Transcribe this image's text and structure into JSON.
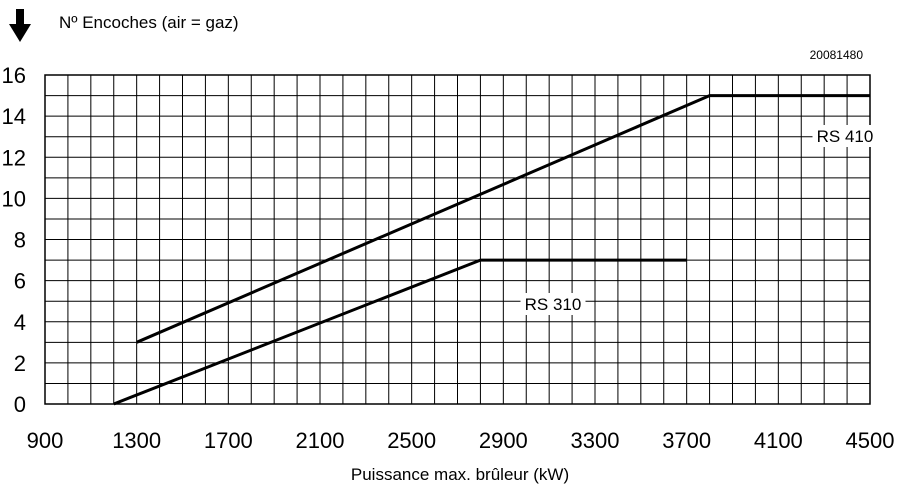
{
  "chart_data": {
    "type": "line",
    "title": "Nº Encoches (air = gaz)",
    "code": "20081480",
    "xlabel": "Puissance max. brûleur (kW)",
    "ylabel": "",
    "xlim": [
      900,
      4500
    ],
    "ylim": [
      0,
      16
    ],
    "x_ticks": [
      900,
      1300,
      1700,
      2100,
      2500,
      2900,
      3300,
      3700,
      4100,
      4500
    ],
    "y_ticks": [
      0,
      2,
      4,
      6,
      8,
      10,
      12,
      14,
      16
    ],
    "x_minor_step": 100,
    "y_minor_step": 1,
    "grid": true,
    "series": [
      {
        "name": "RS 410",
        "points": [
          [
            1300,
            3
          ],
          [
            3800,
            15
          ],
          [
            4500,
            15
          ]
        ],
        "color": "#000000"
      },
      {
        "name": "RS 310",
        "points": [
          [
            1200,
            0
          ],
          [
            2800,
            7
          ],
          [
            3700,
            7
          ]
        ],
        "color": "#000000"
      }
    ]
  }
}
